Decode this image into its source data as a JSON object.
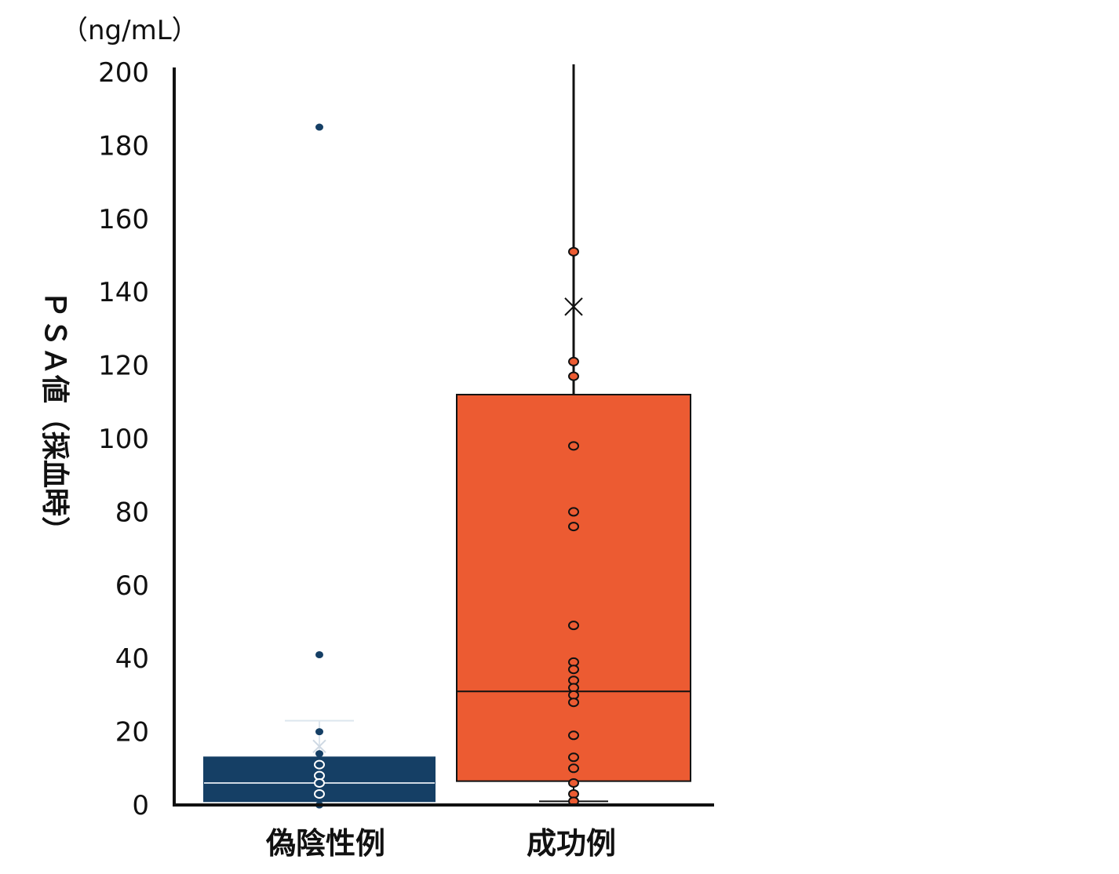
{
  "chart_data": {
    "type": "box",
    "unit_label": "（ng/mL）",
    "ylabel": "ＰＳＡ値（採血時）",
    "ylim": [
      0,
      200
    ],
    "yticks": [
      0,
      20,
      40,
      60,
      80,
      100,
      120,
      140,
      160,
      180,
      200
    ],
    "categories": [
      "偽陰性例",
      "成功例"
    ],
    "colors": {
      "偽陰性例": "#153f65",
      "成功例": "#ec5b32"
    },
    "boxes": [
      {
        "category": "偽陰性例",
        "whisker_low": 0,
        "q1": 1,
        "median": 6,
        "q3": 13,
        "whisker_high": 23,
        "mean": 16,
        "points": [
          185,
          41,
          20,
          14,
          11,
          8,
          6,
          3,
          0
        ]
      },
      {
        "category": "成功例",
        "whisker_low": 1,
        "q1": 6.5,
        "median": 31,
        "q3": 112,
        "whisker_high": 200,
        "mean": 136,
        "points": [
          151,
          121,
          117,
          98,
          80,
          76,
          49,
          39,
          37,
          34,
          32,
          30,
          28,
          19,
          13,
          10,
          6,
          3,
          1
        ]
      }
    ]
  }
}
